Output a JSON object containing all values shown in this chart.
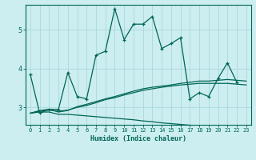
{
  "xlabel": "Humidex (Indice chaleur)",
  "bg_color": "#cceef0",
  "grid_color": "#aad8dc",
  "line_color": "#006655",
  "xlim": [
    -0.5,
    23.5
  ],
  "ylim": [
    2.55,
    5.65
  ],
  "yticks": [
    3,
    4,
    5
  ],
  "xticks": [
    0,
    1,
    2,
    3,
    4,
    5,
    6,
    7,
    8,
    9,
    10,
    11,
    12,
    13,
    14,
    15,
    16,
    17,
    18,
    19,
    20,
    21,
    22,
    23
  ],
  "series1_x": [
    0,
    1,
    2,
    3,
    4,
    5,
    6,
    7,
    8,
    9,
    10,
    11,
    12,
    13,
    14,
    15,
    16,
    17,
    18,
    19,
    20,
    21,
    22
  ],
  "series1_y": [
    3.85,
    2.85,
    2.95,
    2.95,
    3.9,
    3.28,
    3.22,
    4.35,
    4.45,
    5.55,
    4.75,
    5.15,
    5.15,
    5.35,
    4.52,
    4.65,
    4.8,
    3.22,
    3.38,
    3.28,
    3.75,
    4.15,
    3.65
  ],
  "series2_x": [
    0,
    1,
    2,
    3,
    4,
    5,
    6,
    7,
    8,
    9,
    10,
    11,
    12,
    13,
    14,
    15,
    16,
    17,
    18,
    19,
    20,
    21,
    22,
    23
  ],
  "series2_y": [
    2.85,
    2.92,
    2.95,
    2.88,
    2.92,
    3.02,
    3.08,
    3.15,
    3.22,
    3.28,
    3.35,
    3.42,
    3.48,
    3.52,
    3.55,
    3.58,
    3.62,
    3.65,
    3.68,
    3.68,
    3.7,
    3.72,
    3.7,
    3.68
  ],
  "series3_x": [
    0,
    1,
    2,
    3,
    4,
    5,
    6,
    7,
    8,
    9,
    10,
    11,
    12,
    13,
    14,
    15,
    16,
    17,
    18,
    19,
    20,
    21,
    22,
    23
  ],
  "series3_y": [
    2.85,
    2.88,
    2.88,
    2.82,
    2.82,
    2.8,
    2.78,
    2.76,
    2.74,
    2.72,
    2.7,
    2.68,
    2.65,
    2.63,
    2.6,
    2.58,
    2.56,
    2.54,
    2.52,
    2.5,
    2.48,
    2.46,
    2.44,
    2.42
  ],
  "series4_x": [
    0,
    1,
    2,
    3,
    4,
    5,
    6,
    7,
    8,
    9,
    10,
    11,
    12,
    13,
    14,
    15,
    16,
    17,
    18,
    19,
    20,
    21,
    22,
    23
  ],
  "series4_y": [
    2.85,
    2.9,
    2.93,
    2.9,
    2.93,
    3.0,
    3.05,
    3.12,
    3.2,
    3.25,
    3.32,
    3.38,
    3.44,
    3.48,
    3.52,
    3.55,
    3.58,
    3.6,
    3.62,
    3.62,
    3.62,
    3.62,
    3.6,
    3.58
  ]
}
